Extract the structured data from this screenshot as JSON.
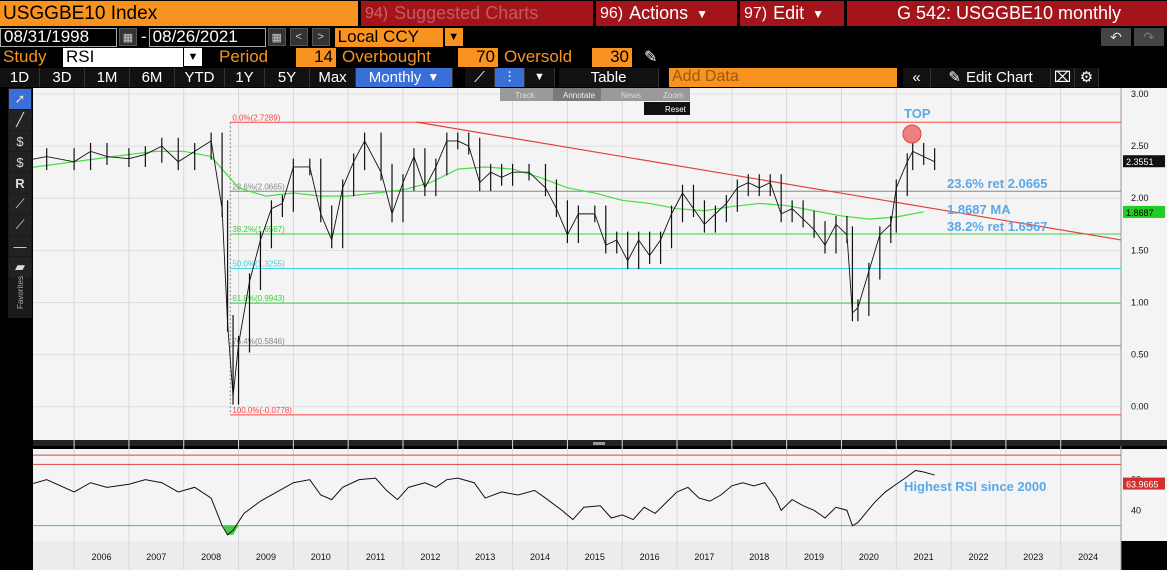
{
  "header": {
    "ticker": "USGGBE10 Index",
    "suggested": {
      "num": "94)",
      "label": "Suggested Charts"
    },
    "actions": {
      "num": "96)",
      "label": "Actions"
    },
    "edit": {
      "num": "97)",
      "label": "Edit"
    },
    "title": "G 542: USGGBE10 monthly"
  },
  "range": {
    "start": "08/31/1998",
    "end": "08/26/2021",
    "currency": "Local CCY"
  },
  "study": {
    "label": "Study",
    "value": "RSI",
    "period_label": "Period",
    "period": "14",
    "overbought_label": "Overbought",
    "overbought": "70",
    "oversold_label": "Oversold",
    "oversold": "30"
  },
  "toolbar": {
    "ranges": [
      "1D",
      "3D",
      "1M",
      "6M",
      "YTD",
      "1Y",
      "5Y",
      "Max"
    ],
    "frequency": "Monthly",
    "table": "Table",
    "add_data_placeholder": "Add Data",
    "edit_chart": "Edit Chart",
    "mini": {
      "track": "Track",
      "annotate": "Annotate",
      "news": "News",
      "zoom": "Zoom",
      "reset": "Reset"
    }
  },
  "left_tools": [
    "cursor-icon",
    "pen-icon",
    "percent-up-icon",
    "dollar-icon",
    "r-icon",
    "line-icon",
    "line2-icon",
    "horizontal-line-icon",
    "channel-icon"
  ],
  "left_tools_label": "Favorites",
  "chart_data": {
    "type": "line",
    "x_labels": [
      "2006",
      "2007",
      "2008",
      "2009",
      "2010",
      "2011",
      "2012",
      "2013",
      "2014",
      "2015",
      "2016",
      "2017",
      "2018",
      "2019",
      "2020",
      "2021",
      "2022",
      "2023",
      "2024"
    ],
    "price_axis": {
      "ticks": [
        "3.00",
        "2.50",
        "2.00",
        "1.50",
        "1.00",
        "0.50",
        "0.00"
      ],
      "ylim": [
        -0.3,
        3.0
      ]
    },
    "rsi_axis": {
      "ticks": [
        "60",
        "40"
      ]
    },
    "fib_levels": [
      {
        "label": "0.0%(2.7289)",
        "value": 2.7289,
        "color": "#ff4444"
      },
      {
        "label": "23.6%(2.0665)",
        "value": 2.0665,
        "color": "#888888"
      },
      {
        "label": "38.2%(1.6567)",
        "value": 1.6567,
        "color": "#3ecf3e"
      },
      {
        "label": "50.0%(1.3255)",
        "value": 1.3255,
        "color": "#40d0e0"
      },
      {
        "label": "61.8%(0.9943)",
        "value": 0.9943,
        "color": "#3ecf3e"
      },
      {
        "label": "76.4%(0.5846)",
        "value": 0.5846,
        "color": "#888888"
      },
      {
        "label": "100.0%(-0.0778)",
        "value": -0.0778,
        "color": "#ff4444"
      }
    ],
    "annotations": {
      "top": "TOP",
      "ret236": "23.6% ret 2.0665",
      "ma": "1.8687 MA",
      "ret382": "38.2% ret 1.6567",
      "rsi": "Highest RSI since 2000"
    },
    "last_price": "2.3551",
    "ma_value": "1.8687",
    "last_rsi": "63.9665",
    "price_series": [
      [
        2005.0,
        2.35
      ],
      [
        2005.5,
        2.4
      ],
      [
        2006.0,
        2.35
      ],
      [
        2006.3,
        2.45
      ],
      [
        2006.6,
        2.4
      ],
      [
        2007.0,
        2.38
      ],
      [
        2007.3,
        2.42
      ],
      [
        2007.6,
        2.5
      ],
      [
        2007.9,
        2.35
      ],
      [
        2008.2,
        2.45
      ],
      [
        2008.5,
        2.55
      ],
      [
        2008.7,
        1.9
      ],
      [
        2008.8,
        0.8
      ],
      [
        2008.9,
        0.1
      ],
      [
        2009.0,
        0.6
      ],
      [
        2009.2,
        1.2
      ],
      [
        2009.4,
        1.6
      ],
      [
        2009.6,
        1.9
      ],
      [
        2009.8,
        1.95
      ],
      [
        2010.0,
        2.3
      ],
      [
        2010.3,
        2.3
      ],
      [
        2010.5,
        1.85
      ],
      [
        2010.7,
        1.6
      ],
      [
        2010.9,
        2.1
      ],
      [
        2011.1,
        2.35
      ],
      [
        2011.3,
        2.55
      ],
      [
        2011.6,
        2.25
      ],
      [
        2011.8,
        1.85
      ],
      [
        2012.0,
        2.15
      ],
      [
        2012.2,
        2.4
      ],
      [
        2012.4,
        2.1
      ],
      [
        2012.6,
        2.3
      ],
      [
        2012.8,
        2.55
      ],
      [
        2013.0,
        2.55
      ],
      [
        2013.2,
        2.5
      ],
      [
        2013.4,
        2.15
      ],
      [
        2013.6,
        2.25
      ],
      [
        2013.8,
        2.2
      ],
      [
        2014.0,
        2.25
      ],
      [
        2014.3,
        2.25
      ],
      [
        2014.6,
        2.1
      ],
      [
        2014.8,
        1.9
      ],
      [
        2015.0,
        1.65
      ],
      [
        2015.2,
        1.85
      ],
      [
        2015.5,
        1.85
      ],
      [
        2015.7,
        1.55
      ],
      [
        2015.9,
        1.6
      ],
      [
        2016.1,
        1.4
      ],
      [
        2016.3,
        1.6
      ],
      [
        2016.5,
        1.45
      ],
      [
        2016.7,
        1.6
      ],
      [
        2016.9,
        1.85
      ],
      [
        2017.1,
        2.05
      ],
      [
        2017.3,
        1.9
      ],
      [
        2017.5,
        1.75
      ],
      [
        2017.7,
        1.85
      ],
      [
        2017.9,
        1.95
      ],
      [
        2018.1,
        2.1
      ],
      [
        2018.3,
        2.15
      ],
      [
        2018.5,
        2.1
      ],
      [
        2018.7,
        2.15
      ],
      [
        2018.9,
        1.85
      ],
      [
        2019.1,
        1.9
      ],
      [
        2019.3,
        1.8
      ],
      [
        2019.5,
        1.7
      ],
      [
        2019.7,
        1.55
      ],
      [
        2019.9,
        1.75
      ],
      [
        2020.1,
        1.65
      ],
      [
        2020.2,
        0.9
      ],
      [
        2020.3,
        0.95
      ],
      [
        2020.5,
        1.3
      ],
      [
        2020.7,
        1.65
      ],
      [
        2020.9,
        1.75
      ],
      [
        2021.0,
        2.1
      ],
      [
        2021.2,
        2.35
      ],
      [
        2021.3,
        2.45
      ],
      [
        2021.5,
        2.4
      ],
      [
        2021.7,
        2.35
      ]
    ],
    "ma_series": [
      [
        2005.0,
        2.28
      ],
      [
        2006.0,
        2.35
      ],
      [
        2007.0,
        2.42
      ],
      [
        2007.5,
        2.45
      ],
      [
        2008.0,
        2.45
      ],
      [
        2008.5,
        2.4
      ],
      [
        2009.0,
        2.1
      ],
      [
        2009.5,
        2.02
      ],
      [
        2010.0,
        2.05
      ],
      [
        2010.5,
        2.02
      ],
      [
        2011.0,
        2.02
      ],
      [
        2011.5,
        2.05
      ],
      [
        2012.0,
        2.08
      ],
      [
        2012.5,
        2.15
      ],
      [
        2013.0,
        2.28
      ],
      [
        2013.5,
        2.3
      ],
      [
        2014.0,
        2.28
      ],
      [
        2014.5,
        2.2
      ],
      [
        2015.0,
        2.1
      ],
      [
        2015.5,
        2.05
      ],
      [
        2016.0,
        1.98
      ],
      [
        2016.5,
        1.95
      ],
      [
        2017.0,
        1.9
      ],
      [
        2017.5,
        1.88
      ],
      [
        2018.0,
        1.92
      ],
      [
        2018.5,
        1.95
      ],
      [
        2019.0,
        1.93
      ],
      [
        2019.5,
        1.88
      ],
      [
        2020.0,
        1.83
      ],
      [
        2020.5,
        1.8
      ],
      [
        2021.0,
        1.82
      ],
      [
        2021.5,
        1.87
      ]
    ],
    "rsi_series": [
      [
        2005.0,
        55
      ],
      [
        2005.5,
        60
      ],
      [
        2006.0,
        52
      ],
      [
        2006.3,
        58
      ],
      [
        2006.6,
        55
      ],
      [
        2007.0,
        57
      ],
      [
        2007.3,
        60
      ],
      [
        2007.6,
        58
      ],
      [
        2007.9,
        52
      ],
      [
        2008.2,
        55
      ],
      [
        2008.5,
        48
      ],
      [
        2008.7,
        30
      ],
      [
        2008.8,
        24
      ],
      [
        2008.9,
        27
      ],
      [
        2009.1,
        38
      ],
      [
        2009.4,
        46
      ],
      [
        2009.7,
        52
      ],
      [
        2010.0,
        58
      ],
      [
        2010.3,
        60
      ],
      [
        2010.5,
        50
      ],
      [
        2010.7,
        47
      ],
      [
        2010.9,
        55
      ],
      [
        2011.2,
        60
      ],
      [
        2011.5,
        61
      ],
      [
        2011.7,
        53
      ],
      [
        2011.9,
        47
      ],
      [
        2012.1,
        55
      ],
      [
        2012.4,
        58
      ],
      [
        2012.6,
        55
      ],
      [
        2012.8,
        60
      ],
      [
        2013.0,
        61
      ],
      [
        2013.3,
        58
      ],
      [
        2013.5,
        48
      ],
      [
        2013.8,
        52
      ],
      [
        2014.1,
        50
      ],
      [
        2014.4,
        53
      ],
      [
        2014.6,
        48
      ],
      [
        2014.9,
        40
      ],
      [
        2015.1,
        34
      ],
      [
        2015.3,
        42
      ],
      [
        2015.6,
        43
      ],
      [
        2015.8,
        35
      ],
      [
        2016.0,
        37
      ],
      [
        2016.2,
        34
      ],
      [
        2016.4,
        42
      ],
      [
        2016.6,
        38
      ],
      [
        2016.8,
        45
      ],
      [
        2017.0,
        52
      ],
      [
        2017.2,
        55
      ],
      [
        2017.4,
        48
      ],
      [
        2017.6,
        46
      ],
      [
        2017.8,
        50
      ],
      [
        2018.0,
        56
      ],
      [
        2018.2,
        58
      ],
      [
        2018.4,
        56
      ],
      [
        2018.6,
        58
      ],
      [
        2018.8,
        48
      ],
      [
        2018.9,
        40
      ],
      [
        2019.1,
        47
      ],
      [
        2019.3,
        43
      ],
      [
        2019.5,
        40
      ],
      [
        2019.7,
        35
      ],
      [
        2019.9,
        42
      ],
      [
        2020.1,
        40
      ],
      [
        2020.2,
        30
      ],
      [
        2020.3,
        32
      ],
      [
        2020.6,
        45
      ],
      [
        2020.8,
        52
      ],
      [
        2021.0,
        57
      ],
      [
        2021.2,
        62
      ],
      [
        2021.35,
        66
      ],
      [
        2021.5,
        65
      ],
      [
        2021.7,
        63
      ]
    ]
  }
}
